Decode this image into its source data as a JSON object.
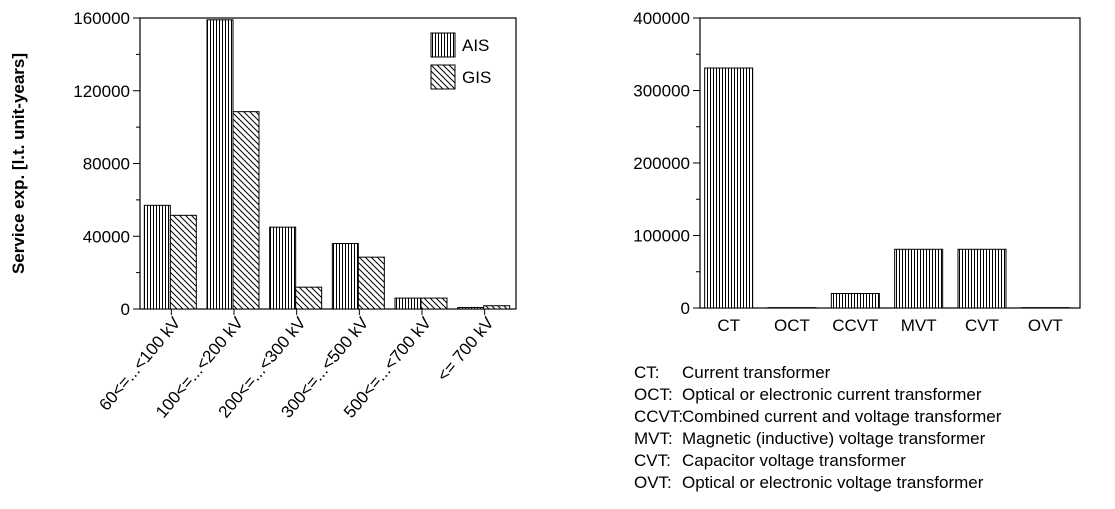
{
  "chart_data": [
    {
      "type": "bar",
      "title": "",
      "xlabel": "",
      "ylabel": "Service exp. [l.t. unit-years]",
      "ylim": [
        0,
        160000
      ],
      "yticks": [
        0,
        40000,
        80000,
        120000,
        160000
      ],
      "grid": false,
      "legend_position": "top-right",
      "categories": [
        "60<=...<100 kV",
        "100<=...<200 kV",
        "200<=...<300 kV",
        "300<=...<500 kV",
        "500<=...<700 kV",
        "<= 700 kV"
      ],
      "series": [
        {
          "name": "AIS",
          "values": [
            57000,
            159000,
            45000,
            36000,
            6000,
            800
          ]
        },
        {
          "name": "GIS",
          "values": [
            51500,
            108500,
            12000,
            28500,
            6000,
            1800
          ]
        }
      ]
    },
    {
      "type": "bar",
      "title": "",
      "xlabel": "",
      "ylabel": "",
      "ylim": [
        0,
        400000
      ],
      "yticks": [
        0,
        100000,
        200000,
        300000,
        400000
      ],
      "grid": false,
      "categories": [
        "CT",
        "OCT",
        "CCVT",
        "MVT",
        "CVT",
        "OVT"
      ],
      "values": [
        331000,
        500,
        20000,
        81000,
        81000,
        500
      ]
    }
  ],
  "abbreviations": [
    {
      "abbr": "CT:",
      "text": "Current transformer"
    },
    {
      "abbr": "OCT:",
      "text": "Optical or electronic current transformer"
    },
    {
      "abbr": "CCVT:",
      "text": "Combined current and voltage transformer"
    },
    {
      "abbr": "MVT:",
      "text": "Magnetic (inductive) voltage transformer"
    },
    {
      "abbr": "CVT:",
      "text": "Capacitor voltage transformer"
    },
    {
      "abbr": "OVT:",
      "text": "Optical or electronic voltage transformer"
    }
  ],
  "colors": {
    "bar_stroke": "#000000",
    "fill_bg": "#ffffff"
  }
}
